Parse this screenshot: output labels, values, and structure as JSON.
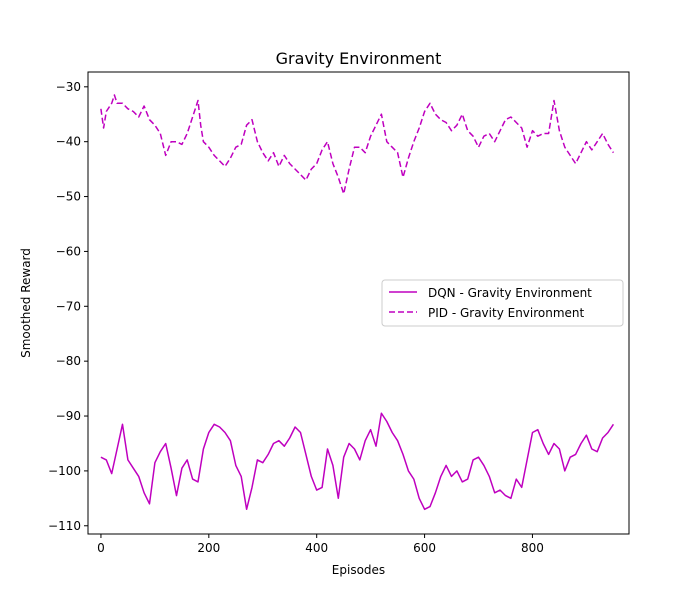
{
  "chart_data": {
    "type": "line",
    "title": "Gravity Environment",
    "xlabel": "Episodes",
    "ylabel": "Smoothed Reward",
    "xlim": [
      -24,
      979
    ],
    "ylim": [
      -111.5,
      -27.3
    ],
    "xticks": [
      0,
      200,
      400,
      600,
      800
    ],
    "xtick_labels": [
      "0",
      "200",
      "400",
      "600",
      "800"
    ],
    "yticks": [
      -30,
      -40,
      -50,
      -60,
      -70,
      -80,
      -90,
      -100,
      -110
    ],
    "ytick_labels": [
      "−30",
      "−40",
      "−50",
      "−60",
      "−70",
      "−80",
      "−90",
      "−100",
      "−110"
    ],
    "grid": false,
    "legend_position": "center-right",
    "series": [
      {
        "name": "DQN - Gravity Environment",
        "color": "#bf00bf",
        "linestyle": "solid",
        "x": [
          0,
          10,
          20,
          30,
          40,
          50,
          60,
          70,
          80,
          90,
          100,
          110,
          120,
          130,
          140,
          150,
          160,
          170,
          180,
          190,
          200,
          210,
          220,
          230,
          240,
          250,
          260,
          270,
          280,
          290,
          300,
          310,
          320,
          330,
          340,
          350,
          360,
          370,
          380,
          390,
          400,
          410,
          420,
          430,
          440,
          450,
          460,
          470,
          480,
          490,
          500,
          510,
          520,
          530,
          540,
          550,
          560,
          570,
          580,
          590,
          600,
          610,
          620,
          630,
          640,
          650,
          660,
          670,
          680,
          690,
          700,
          710,
          720,
          730,
          740,
          750,
          760,
          770,
          780,
          790,
          800,
          810,
          820,
          830,
          840,
          850,
          860,
          870,
          880,
          890,
          900,
          910,
          920,
          930,
          940,
          950
        ],
        "values": [
          -97.5,
          -98,
          -100.5,
          -96,
          -91.5,
          -98,
          -99.5,
          -101,
          -104,
          -106,
          -98.5,
          -96.5,
          -95,
          -99.5,
          -104.5,
          -99.5,
          -98,
          -101.5,
          -102,
          -96,
          -93,
          -91.5,
          -92,
          -93,
          -94.5,
          -99,
          -101,
          -107,
          -103,
          -98,
          -98.5,
          -97,
          -95,
          -94.5,
          -95.5,
          -94,
          -92,
          -93,
          -97,
          -101,
          -103.5,
          -103,
          -96,
          -99,
          -105,
          -97.5,
          -95,
          -96,
          -98,
          -94.5,
          -92.5,
          -95.5,
          -89.5,
          -91,
          -93,
          -94.5,
          -97,
          -100,
          -101.5,
          -105,
          -107,
          -106.5,
          -104,
          -101,
          -99,
          -101,
          -100,
          -102,
          -101.5,
          -98,
          -97.5,
          -99,
          -101,
          -104,
          -103.5,
          -104.5,
          -105,
          -101.5,
          -103,
          -98,
          -93,
          -92.5,
          -95,
          -97,
          -95,
          -96,
          -100,
          -97.5,
          -97,
          -95,
          -93.5,
          -96,
          -96.5,
          -94,
          -93,
          -91.5
        ]
      },
      {
        "name": "PID - Gravity Environment",
        "color": "#bf00bf",
        "linestyle": "dashed",
        "x": [
          0,
          5,
          10,
          20,
          25,
          30,
          40,
          50,
          60,
          70,
          80,
          90,
          100,
          110,
          120,
          130,
          140,
          150,
          160,
          170,
          180,
          185,
          190,
          200,
          210,
          220,
          230,
          240,
          250,
          260,
          270,
          280,
          290,
          300,
          310,
          320,
          330,
          340,
          350,
          360,
          370,
          380,
          390,
          400,
          410,
          420,
          430,
          440,
          450,
          460,
          470,
          480,
          490,
          500,
          510,
          520,
          530,
          540,
          550,
          560,
          570,
          580,
          590,
          600,
          610,
          620,
          630,
          640,
          650,
          660,
          670,
          680,
          690,
          700,
          710,
          720,
          730,
          740,
          750,
          760,
          770,
          780,
          790,
          800,
          810,
          820,
          830,
          840,
          850,
          860,
          870,
          880,
          890,
          900,
          910,
          920,
          930,
          940,
          950
        ],
        "values": [
          -34,
          -37.5,
          -34.5,
          -33,
          -31.5,
          -33,
          -33,
          -34,
          -34.5,
          -35.5,
          -33.5,
          -36,
          -37,
          -38.5,
          -42.5,
          -40,
          -40,
          -40.5,
          -38.5,
          -35.5,
          -32.5,
          -37,
          -40,
          -41,
          -42.5,
          -43.5,
          -44.5,
          -43,
          -41,
          -40.5,
          -37,
          -36,
          -40,
          -42,
          -43.5,
          -42,
          -44.5,
          -42.5,
          -44,
          -45,
          -46,
          -47,
          -45,
          -44,
          -41.5,
          -40,
          -44,
          -46.5,
          -49.5,
          -45,
          -41,
          -41,
          -42,
          -39,
          -37,
          -35,
          -40,
          -41,
          -42,
          -46.5,
          -43,
          -40,
          -37.5,
          -34.5,
          -33,
          -35,
          -36,
          -36.5,
          -38,
          -37,
          -35,
          -38,
          -39,
          -41,
          -39,
          -38.5,
          -40,
          -38,
          -36,
          -35.5,
          -36.5,
          -37.5,
          -41,
          -38,
          -39,
          -38.5,
          -38.5,
          -32.5,
          -38,
          -41,
          -42.5,
          -44,
          -42,
          -40,
          -41.5,
          -40,
          -38.5,
          -40.5,
          -42
        ]
      }
    ]
  }
}
